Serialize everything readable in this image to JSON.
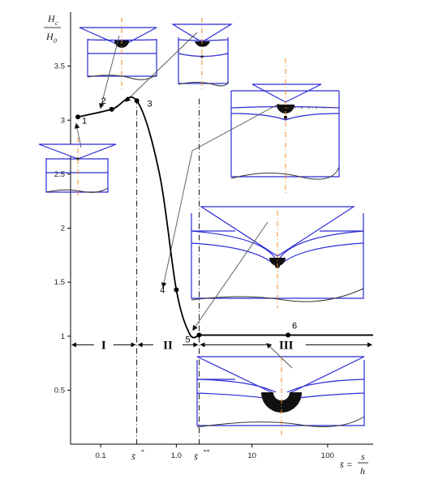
{
  "chart_data": {
    "type": "line",
    "title": "",
    "x_scale": "log",
    "y_scale": "linear",
    "xlim": [
      0.04,
      400
    ],
    "ylim": [
      0,
      4
    ],
    "x_ticks": [
      {
        "value": 0.1,
        "label": "0.1"
      },
      {
        "value": 1.0,
        "label": "1.0"
      },
      {
        "value": 10,
        "label": "10"
      },
      {
        "value": 100,
        "label": "100"
      }
    ],
    "y_ticks": [
      {
        "value": 0.5,
        "label": "0.5"
      },
      {
        "value": 1,
        "label": "1"
      },
      {
        "value": 1.5,
        "label": "1.5"
      },
      {
        "value": 2,
        "label": "2"
      },
      {
        "value": 2.5,
        "label": "2.5"
      },
      {
        "value": 3,
        "label": "3"
      },
      {
        "value": 3.5,
        "label": "3.5"
      }
    ],
    "ylabel_num": "H",
    "ylabel_num_sub": "c",
    "ylabel_den": "H",
    "ylabel_den_sub": "0",
    "xlabel_lhs": "s̄ =",
    "xlabel_num": "s",
    "xlabel_den": "h",
    "series": [
      {
        "x": [
          0.05,
          0.14,
          0.3,
          0.6,
          1.0,
          1.5,
          2.0
        ],
        "y": [
          3.03,
          3.1,
          3.18,
          2.5,
          1.43,
          1.02,
          1.01
        ]
      }
    ],
    "horizontal_tail": {
      "x_start": 2.0,
      "x_end": 400,
      "y": 1.01
    },
    "points": [
      {
        "label": "1",
        "x": 0.05,
        "y": 3.03
      },
      {
        "label": "2",
        "x": 0.14,
        "y": 3.1
      },
      {
        "label": "3",
        "x": 0.3,
        "y": 3.18
      },
      {
        "label": "4",
        "x": 1.0,
        "y": 1.43
      },
      {
        "label": "5",
        "x": 2.0,
        "y": 1.01
      },
      {
        "label": "6",
        "x": 30,
        "y": 1.01
      }
    ],
    "critical_lines": [
      {
        "x": 0.3,
        "label": "s̄",
        "sup": "*"
      },
      {
        "x": 2.0,
        "label": "s̄",
        "sup": "**"
      }
    ],
    "regions": [
      {
        "label": "I",
        "x_start": 0.04,
        "x_end": 0.3
      },
      {
        "label": "II",
        "x_start": 0.3,
        "x_end": 2.0
      },
      {
        "label": "III",
        "x_start": 2.0,
        "x_end": 400
      }
    ],
    "region_arrow_y": 0.92,
    "legend": "none",
    "grid": false
  },
  "colors": {
    "axis": "#000000",
    "curve": "#000000",
    "diagram": "#2b2bd6",
    "centerline": "#f08a2a",
    "dark": "#111111",
    "leader": "#555555"
  }
}
